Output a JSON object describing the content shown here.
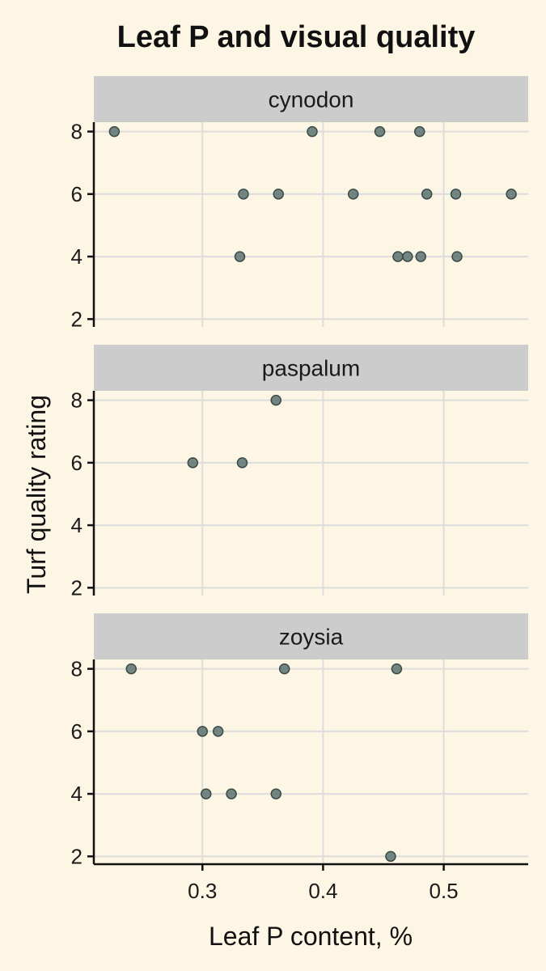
{
  "chart_data": {
    "type": "scatter",
    "title": "Leaf P and visual quality",
    "xlabel": "Leaf P content, %",
    "ylabel": "Turf quality rating",
    "xlim": [
      0.21,
      0.57
    ],
    "ylim": [
      1.75,
      8.3
    ],
    "x_ticks": [
      0.3,
      0.4,
      0.5
    ],
    "x_tick_labels": [
      "0.3",
      "0.4",
      "0.5"
    ],
    "y_ticks": [
      2,
      4,
      6,
      8
    ],
    "y_tick_labels": [
      "2",
      "4",
      "6",
      "8"
    ],
    "grid": true,
    "facets": [
      {
        "name": "cynodon",
        "points": [
          {
            "x": 0.227,
            "y": 8
          },
          {
            "x": 0.391,
            "y": 8
          },
          {
            "x": 0.447,
            "y": 8
          },
          {
            "x": 0.48,
            "y": 8
          },
          {
            "x": 0.334,
            "y": 6
          },
          {
            "x": 0.363,
            "y": 6
          },
          {
            "x": 0.425,
            "y": 6
          },
          {
            "x": 0.486,
            "y": 6
          },
          {
            "x": 0.51,
            "y": 6
          },
          {
            "x": 0.556,
            "y": 6
          },
          {
            "x": 0.331,
            "y": 4
          },
          {
            "x": 0.462,
            "y": 4
          },
          {
            "x": 0.47,
            "y": 4
          },
          {
            "x": 0.481,
            "y": 4
          },
          {
            "x": 0.511,
            "y": 4
          }
        ]
      },
      {
        "name": "paspalum",
        "points": [
          {
            "x": 0.361,
            "y": 8
          },
          {
            "x": 0.292,
            "y": 6
          },
          {
            "x": 0.333,
            "y": 6
          }
        ]
      },
      {
        "name": "zoysia",
        "points": [
          {
            "x": 0.241,
            "y": 8
          },
          {
            "x": 0.368,
            "y": 8
          },
          {
            "x": 0.461,
            "y": 8
          },
          {
            "x": 0.3,
            "y": 6
          },
          {
            "x": 0.313,
            "y": 6
          },
          {
            "x": 0.303,
            "y": 4
          },
          {
            "x": 0.324,
            "y": 4
          },
          {
            "x": 0.361,
            "y": 4
          },
          {
            "x": 0.456,
            "y": 2
          }
        ]
      }
    ]
  }
}
